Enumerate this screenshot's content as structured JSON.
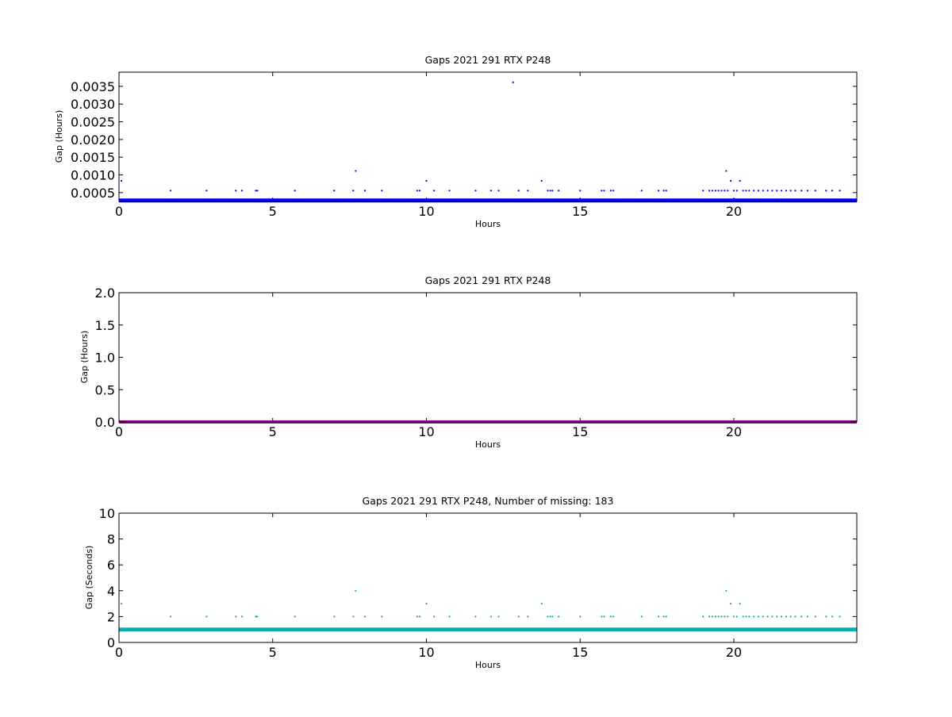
{
  "chart_data": [
    {
      "type": "scatter",
      "title": "Gaps 2021 291 RTX  P248",
      "xlabel": "Hours",
      "ylabel": "Gap (Hours)",
      "xlim": [
        0,
        24
      ],
      "ylim": [
        0.00025,
        0.0039
      ],
      "xticks": [
        "0",
        "5",
        "10",
        "15",
        "20"
      ],
      "yticks": [
        "0.0005",
        "0.0010",
        "0.0015",
        "0.0020",
        "0.0025",
        "0.0030",
        "0.0035"
      ],
      "grid": false,
      "color": "#0000ff",
      "series": [
        {
          "baseline": {
            "y": 0.000278,
            "x_start": 0,
            "x_end": 24
          },
          "points": [
            {
              "x": 0.08,
              "y": 0.000833
            },
            {
              "x": 1.68,
              "y": 0.000556
            },
            {
              "x": 2.85,
              "y": 0.000556
            },
            {
              "x": 3.8,
              "y": 0.000556
            },
            {
              "x": 4.0,
              "y": 0.000556
            },
            {
              "x": 4.45,
              "y": 0.000556
            },
            {
              "x": 4.5,
              "y": 0.000556
            },
            {
              "x": 5.72,
              "y": 0.000556
            },
            {
              "x": 7.0,
              "y": 0.000556
            },
            {
              "x": 7.62,
              "y": 0.000556
            },
            {
              "x": 7.7,
              "y": 0.001111
            },
            {
              "x": 8.0,
              "y": 0.000556
            },
            {
              "x": 8.55,
              "y": 0.000556
            },
            {
              "x": 9.7,
              "y": 0.000556
            },
            {
              "x": 9.78,
              "y": 0.000556
            },
            {
              "x": 10.0,
              "y": 0.000833
            },
            {
              "x": 10.25,
              "y": 0.000556
            },
            {
              "x": 10.75,
              "y": 0.000556
            },
            {
              "x": 11.6,
              "y": 0.000556
            },
            {
              "x": 12.1,
              "y": 0.000556
            },
            {
              "x": 12.35,
              "y": 0.000556
            },
            {
              "x": 12.82,
              "y": 0.003611
            },
            {
              "x": 13.0,
              "y": 0.000556
            },
            {
              "x": 13.3,
              "y": 0.000556
            },
            {
              "x": 13.75,
              "y": 0.000833
            },
            {
              "x": 13.95,
              "y": 0.000556
            },
            {
              "x": 14.03,
              "y": 0.000556
            },
            {
              "x": 14.1,
              "y": 0.000556
            },
            {
              "x": 14.3,
              "y": 0.000556
            },
            {
              "x": 15.0,
              "y": 0.000556
            },
            {
              "x": 15.7,
              "y": 0.000556
            },
            {
              "x": 15.78,
              "y": 0.000556
            },
            {
              "x": 16.0,
              "y": 0.000556
            },
            {
              "x": 16.08,
              "y": 0.000556
            },
            {
              "x": 17.0,
              "y": 0.000556
            },
            {
              "x": 17.55,
              "y": 0.000556
            },
            {
              "x": 17.72,
              "y": 0.000556
            },
            {
              "x": 17.8,
              "y": 0.000556
            },
            {
              "x": 19.0,
              "y": 0.000556
            },
            {
              "x": 19.2,
              "y": 0.000556
            },
            {
              "x": 19.3,
              "y": 0.000556
            },
            {
              "x": 19.4,
              "y": 0.000556
            },
            {
              "x": 19.5,
              "y": 0.000556
            },
            {
              "x": 19.6,
              "y": 0.000556
            },
            {
              "x": 19.7,
              "y": 0.000556
            },
            {
              "x": 19.75,
              "y": 0.001111
            },
            {
              "x": 19.8,
              "y": 0.000556
            },
            {
              "x": 19.9,
              "y": 0.000833
            },
            {
              "x": 20.0,
              "y": 0.000556
            },
            {
              "x": 20.1,
              "y": 0.000556
            },
            {
              "x": 20.2,
              "y": 0.000833
            },
            {
              "x": 20.3,
              "y": 0.000556
            },
            {
              "x": 20.4,
              "y": 0.000556
            },
            {
              "x": 20.5,
              "y": 0.000556
            },
            {
              "x": 20.65,
              "y": 0.000556
            },
            {
              "x": 20.8,
              "y": 0.000556
            },
            {
              "x": 20.95,
              "y": 0.000556
            },
            {
              "x": 21.1,
              "y": 0.000556
            },
            {
              "x": 21.25,
              "y": 0.000556
            },
            {
              "x": 21.4,
              "y": 0.000556
            },
            {
              "x": 21.55,
              "y": 0.000556
            },
            {
              "x": 21.7,
              "y": 0.000556
            },
            {
              "x": 21.85,
              "y": 0.000556
            },
            {
              "x": 22.0,
              "y": 0.000556
            },
            {
              "x": 22.2,
              "y": 0.000556
            },
            {
              "x": 22.4,
              "y": 0.000556
            },
            {
              "x": 22.65,
              "y": 0.000556
            },
            {
              "x": 23.0,
              "y": 0.000556
            },
            {
              "x": 23.2,
              "y": 0.000556
            },
            {
              "x": 23.45,
              "y": 0.000556
            }
          ]
        }
      ]
    },
    {
      "type": "scatter",
      "title": "Gaps 2021 291 RTX  P248",
      "xlabel": "Hours",
      "ylabel": "Gap (Hours)",
      "xlim": [
        0,
        24
      ],
      "ylim": [
        0,
        2.0
      ],
      "xticks": [
        "0",
        "5",
        "10",
        "15",
        "20"
      ],
      "yticks": [
        "0.0",
        "0.5",
        "1.0",
        "1.5",
        "2.0"
      ],
      "grid": false,
      "color": "#990099",
      "series": [
        {
          "baseline": {
            "y": 0.0,
            "x_start": 0,
            "x_end": 24
          },
          "points": []
        }
      ]
    },
    {
      "type": "scatter",
      "title": "Gaps 2021 291 RTX  P248, Number of missing: 183",
      "xlabel": "Hours",
      "ylabel": "Gap (Seconds)",
      "xlim": [
        0,
        24
      ],
      "ylim": [
        0,
        10
      ],
      "xticks": [
        "0",
        "5",
        "10",
        "15",
        "20"
      ],
      "yticks": [
        "0",
        "2",
        "4",
        "6",
        "8",
        "10"
      ],
      "grid": false,
      "color": "#00b3b3",
      "series": [
        {
          "baseline": {
            "y": 1,
            "x_start": 0,
            "x_end": 24
          },
          "points": [
            {
              "x": 0.08,
              "y": 3
            },
            {
              "x": 1.68,
              "y": 2
            },
            {
              "x": 2.85,
              "y": 2
            },
            {
              "x": 3.8,
              "y": 2
            },
            {
              "x": 4.0,
              "y": 2
            },
            {
              "x": 4.45,
              "y": 2
            },
            {
              "x": 4.5,
              "y": 2
            },
            {
              "x": 5.72,
              "y": 2
            },
            {
              "x": 7.0,
              "y": 2
            },
            {
              "x": 7.62,
              "y": 2
            },
            {
              "x": 7.7,
              "y": 4
            },
            {
              "x": 8.0,
              "y": 2
            },
            {
              "x": 8.55,
              "y": 2
            },
            {
              "x": 9.7,
              "y": 2
            },
            {
              "x": 9.78,
              "y": 2
            },
            {
              "x": 10.0,
              "y": 3
            },
            {
              "x": 10.25,
              "y": 2
            },
            {
              "x": 10.75,
              "y": 2
            },
            {
              "x": 11.6,
              "y": 2
            },
            {
              "x": 12.1,
              "y": 2
            },
            {
              "x": 12.35,
              "y": 2
            },
            {
              "x": 13.0,
              "y": 2
            },
            {
              "x": 13.3,
              "y": 2
            },
            {
              "x": 13.75,
              "y": 3
            },
            {
              "x": 13.95,
              "y": 2
            },
            {
              "x": 14.03,
              "y": 2
            },
            {
              "x": 14.1,
              "y": 2
            },
            {
              "x": 14.3,
              "y": 2
            },
            {
              "x": 15.0,
              "y": 2
            },
            {
              "x": 15.7,
              "y": 2
            },
            {
              "x": 15.78,
              "y": 2
            },
            {
              "x": 16.0,
              "y": 2
            },
            {
              "x": 16.08,
              "y": 2
            },
            {
              "x": 17.0,
              "y": 2
            },
            {
              "x": 17.55,
              "y": 2
            },
            {
              "x": 17.72,
              "y": 2
            },
            {
              "x": 17.8,
              "y": 2
            },
            {
              "x": 19.0,
              "y": 2
            },
            {
              "x": 19.2,
              "y": 2
            },
            {
              "x": 19.3,
              "y": 2
            },
            {
              "x": 19.4,
              "y": 2
            },
            {
              "x": 19.5,
              "y": 2
            },
            {
              "x": 19.6,
              "y": 2
            },
            {
              "x": 19.7,
              "y": 2
            },
            {
              "x": 19.75,
              "y": 4
            },
            {
              "x": 19.8,
              "y": 2
            },
            {
              "x": 19.9,
              "y": 3
            },
            {
              "x": 20.0,
              "y": 2
            },
            {
              "x": 20.1,
              "y": 2
            },
            {
              "x": 20.2,
              "y": 3
            },
            {
              "x": 20.3,
              "y": 2
            },
            {
              "x": 20.4,
              "y": 2
            },
            {
              "x": 20.5,
              "y": 2
            },
            {
              "x": 20.65,
              "y": 2
            },
            {
              "x": 20.8,
              "y": 2
            },
            {
              "x": 20.95,
              "y": 2
            },
            {
              "x": 21.1,
              "y": 2
            },
            {
              "x": 21.25,
              "y": 2
            },
            {
              "x": 21.4,
              "y": 2
            },
            {
              "x": 21.55,
              "y": 2
            },
            {
              "x": 21.7,
              "y": 2
            },
            {
              "x": 21.85,
              "y": 2
            },
            {
              "x": 22.0,
              "y": 2
            },
            {
              "x": 22.2,
              "y": 2
            },
            {
              "x": 22.4,
              "y": 2
            },
            {
              "x": 22.65,
              "y": 2
            },
            {
              "x": 23.0,
              "y": 2
            },
            {
              "x": 23.2,
              "y": 2
            },
            {
              "x": 23.45,
              "y": 2
            }
          ]
        }
      ]
    }
  ]
}
